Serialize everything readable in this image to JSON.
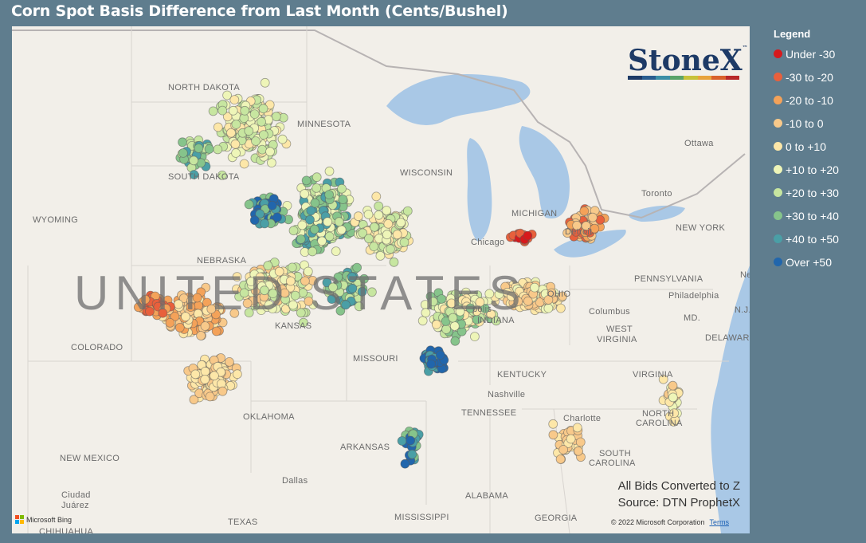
{
  "title": "Corn Spot Basis Difference from Last Month (Cents/Bushel)",
  "legend": {
    "title": "Legend",
    "items": [
      {
        "label": "Under -30",
        "color": "#d7191c"
      },
      {
        "label": "-30 to -20",
        "color": "#e8603c"
      },
      {
        "label": "-20 to -10",
        "color": "#f4a259"
      },
      {
        "label": "-10 to 0",
        "color": "#f8c98a"
      },
      {
        "label": "0 to +10",
        "color": "#fde7a8"
      },
      {
        "label": "+10 to +20",
        "color": "#eef5b8"
      },
      {
        "label": "+20 to +30",
        "color": "#c7e6a0"
      },
      {
        "label": "+30 to +40",
        "color": "#86c48b"
      },
      {
        "label": "+40 to +50",
        "color": "#4a9fa6"
      },
      {
        "label": "Over +50",
        "color": "#2166ac"
      }
    ]
  },
  "logo": {
    "text": "StoneX",
    "tm": "™",
    "stripe": [
      "#1d3a66",
      "#2a5d8f",
      "#3b8fa7",
      "#5aa469",
      "#c7c23a",
      "#e8a33c",
      "#d9612c",
      "#b8282a"
    ]
  },
  "note": {
    "line1": "All Bids Converted to Z",
    "line2": "Source: DTN ProphetX"
  },
  "copyright": {
    "text": "© 2022 Microsoft Corporation",
    "terms": "Terms"
  },
  "bing": {
    "text": "Microsoft Bing",
    "colors": [
      "#f25022",
      "#7fba00",
      "#00a4ef",
      "#ffb900"
    ]
  },
  "map": {
    "big_label": "UNITED STATES",
    "labels": [
      {
        "id": "north-dakota",
        "text": "NORTH DAKOTA"
      },
      {
        "id": "south-dakota",
        "text": "SOUTH DAKOTA"
      },
      {
        "id": "minnesota",
        "text": "MINNESOTA"
      },
      {
        "id": "wisconsin",
        "text": "WISCONSIN"
      },
      {
        "id": "michigan",
        "text": "MICHIGAN"
      },
      {
        "id": "wyoming",
        "text": "WYOMING"
      },
      {
        "id": "nebraska",
        "text": "NEBRASKA"
      },
      {
        "id": "colorado",
        "text": "COLORADO"
      },
      {
        "id": "kansas",
        "text": "KANSAS"
      },
      {
        "id": "missouri",
        "text": "MISSOURI"
      },
      {
        "id": "oklahoma",
        "text": "OKLAHOMA"
      },
      {
        "id": "new-mexico",
        "text": "NEW MEXICO"
      },
      {
        "id": "texas",
        "text": "TEXAS"
      },
      {
        "id": "arkansas",
        "text": "ARKANSAS"
      },
      {
        "id": "mississippi",
        "text": "MISSISSIPPI"
      },
      {
        "id": "alabama",
        "text": "ALABAMA"
      },
      {
        "id": "georgia",
        "text": "GEORGIA"
      },
      {
        "id": "tennessee",
        "text": "TENNESSEE"
      },
      {
        "id": "kentucky",
        "text": "KENTUCKY"
      },
      {
        "id": "indiana",
        "text": "INDIANA"
      },
      {
        "id": "ohio",
        "text": "OHIO"
      },
      {
        "id": "west-virginia-1",
        "text": "WEST"
      },
      {
        "id": "west-virginia-2",
        "text": "VIRGINIA"
      },
      {
        "id": "virginia",
        "text": "VIRGINIA"
      },
      {
        "id": "pennsylvania",
        "text": "PENNSYLVANIA"
      },
      {
        "id": "new-york",
        "text": "NEW YORK"
      },
      {
        "id": "north-carolina-1",
        "text": "NORTH"
      },
      {
        "id": "north-carolina-2",
        "text": "CAROLINA"
      },
      {
        "id": "south-carolina-1",
        "text": "SOUTH"
      },
      {
        "id": "south-carolina-2",
        "text": "CAROLINA"
      },
      {
        "id": "md",
        "text": "MD."
      },
      {
        "id": "nj",
        "text": "N.J."
      },
      {
        "id": "delaware",
        "text": "DELAWARE"
      },
      {
        "id": "chicago",
        "text": "Chicago"
      },
      {
        "id": "detroit",
        "text": "Detroit"
      },
      {
        "id": "toronto",
        "text": "Toronto"
      },
      {
        "id": "ottawa",
        "text": "Ottawa"
      },
      {
        "id": "columbus",
        "text": "Columbus"
      },
      {
        "id": "nashville",
        "text": "Nashville"
      },
      {
        "id": "charlotte",
        "text": "Charlotte"
      },
      {
        "id": "philadelphia",
        "text": "Philadelphia"
      },
      {
        "id": "dallas",
        "text": "Dallas"
      },
      {
        "id": "ciudad-juarez-1",
        "text": "Ciudad"
      },
      {
        "id": "ciudad-juarez-2",
        "text": "Juárez"
      },
      {
        "id": "chihuahua",
        "text": "CHIHUAHUA"
      },
      {
        "id": "new-york-city",
        "text": "New"
      },
      {
        "id": "indianapolis",
        "text": "polis"
      }
    ]
  }
}
